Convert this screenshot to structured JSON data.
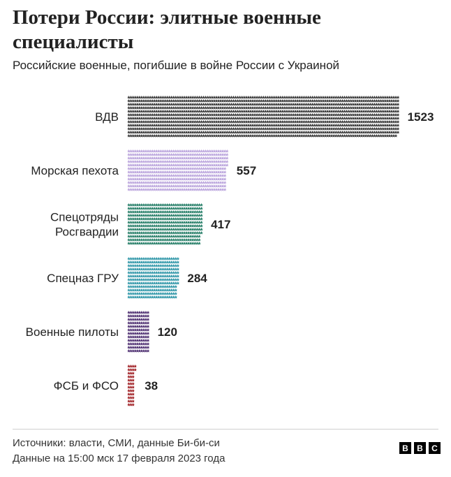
{
  "header": {
    "title": "Потери России: элитные военные специалисты",
    "subtitle": "Российские военные, погибшие в войне России с Украиной"
  },
  "chart_data": {
    "type": "bar",
    "orientation": "horizontal",
    "mark": "star-pictogram",
    "categories": [
      "ВДВ",
      "Морская пехота",
      "Спецотряды Росгвардии",
      "Спецназ ГРУ",
      "Военные пилоты",
      "ФСБ и ФСО"
    ],
    "category_lines": [
      [
        "ВДВ"
      ],
      [
        "Морская пехота"
      ],
      [
        "Спецотряды",
        "Росгвардии"
      ],
      [
        "Спецназ ГРУ"
      ],
      [
        "Военные пилоты"
      ],
      [
        "ФСБ и ФСО"
      ]
    ],
    "values": [
      1523,
      557,
      417,
      284,
      120,
      38
    ],
    "value_labels": [
      "1523",
      "557",
      "417",
      "284",
      "120",
      "38"
    ],
    "colors": [
      "#333333",
      "#b9a3dc",
      "#1f7a63",
      "#2a94a6",
      "#4a2a6e",
      "#9e1b20"
    ],
    "title": "Потери России: элитные военные специалисты",
    "xlabel": "",
    "ylabel": "",
    "grid": false,
    "legend": "none"
  },
  "footer": {
    "source": "Источники: власти, СМИ, данные Би-би-си",
    "data_time": "Данные на 15:00 мск 17 февраля 2023 года",
    "logo_letters": [
      "B",
      "B",
      "C"
    ]
  }
}
